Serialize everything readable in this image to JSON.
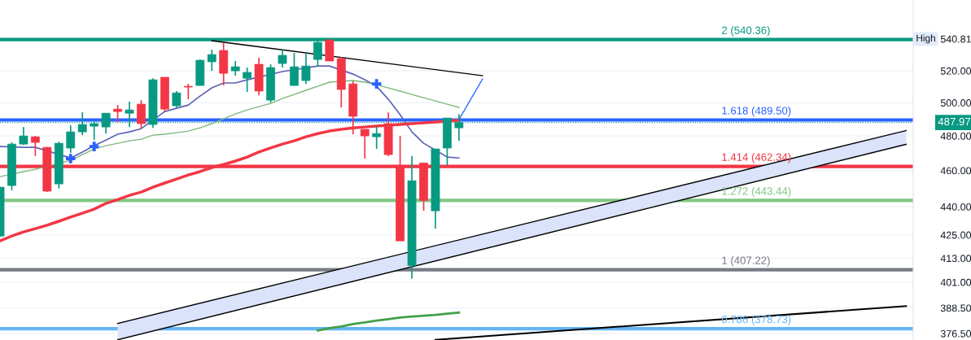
{
  "chart_data": {
    "type": "candlestick",
    "categories": [
      null,
      null,
      null,
      null,
      null,
      null,
      null,
      null,
      null,
      null,
      null,
      null,
      null,
      null,
      null,
      null,
      null,
      null,
      null,
      null,
      null,
      null,
      null,
      null,
      null,
      null,
      null,
      null,
      null,
      null,
      null,
      null,
      null,
      null,
      null,
      null,
      null,
      null,
      null,
      null,
      null,
      null,
      null,
      null,
      null,
      null,
      null,
      null,
      null,
      null,
      null,
      null,
      null,
      null,
      null,
      null,
      null,
      null,
      null,
      null,
      null,
      null,
      null,
      null,
      null,
      null,
      null,
      null,
      null,
      null,
      null,
      null,
      null,
      null,
      null,
      null,
      null,
      null
    ],
    "ohlc": [
      [
        424.4,
        450.7,
        424.0,
        450.7
      ],
      [
        451.6,
        476.2,
        448.9,
        475.2
      ],
      [
        475.2,
        485.3,
        474.8,
        480.0
      ],
      [
        479.5,
        480.0,
        468.2,
        476.2
      ],
      [
        473.3,
        473.5,
        448.0,
        448.5
      ],
      [
        452.5,
        476.6,
        450.0,
        475.7
      ],
      [
        472.9,
        486.3,
        470.1,
        482.4
      ],
      [
        482.4,
        494.1,
        480.5,
        486.8
      ],
      [
        485.8,
        488.7,
        477.6,
        487.3
      ],
      [
        485.3,
        493.6,
        481.4,
        493.6
      ],
      [
        496.1,
        498.6,
        488.3,
        494.6
      ],
      [
        493.6,
        500.6,
        485.3,
        495.6
      ],
      [
        499.1,
        501.6,
        484.3,
        487.3
      ],
      [
        486.8,
        515.3,
        484.8,
        514.3
      ],
      [
        515.9,
        515.9,
        494.6,
        496.1
      ],
      [
        498.1,
        507.2,
        497.1,
        506.1
      ],
      [
        510.2,
        511.7,
        502.1,
        509.7
      ],
      [
        510.7,
        527.3,
        510.7,
        526.8
      ],
      [
        525.8,
        533.7,
        520.0,
        530.5
      ],
      [
        533.2,
        538.5,
        510.7,
        518.4
      ],
      [
        520.0,
        526.3,
        516.9,
        522.6
      ],
      [
        515.3,
        522.1,
        506.7,
        519.0
      ],
      [
        524.2,
        528.4,
        504.6,
        507.2
      ],
      [
        501.6,
        524.2,
        500.1,
        522.1
      ],
      [
        524.7,
        533.7,
        522.1,
        530.0
      ],
      [
        510.7,
        531.6,
        510.7,
        522.6
      ],
      [
        513.8,
        531.6,
        511.7,
        523.1
      ],
      [
        527.3,
        539.6,
        522.6,
        538.5
      ],
      [
        540.1,
        540.81,
        526.3,
        526.3
      ],
      [
        527.9,
        528.9,
        497.1,
        508.2
      ],
      [
        511.7,
        513.3,
        480.9,
        491.7
      ],
      [
        483.9,
        484.0,
        466.8,
        480.0
      ],
      [
        479.5,
        485.8,
        472.4,
        481.4
      ],
      [
        487.3,
        494.1,
        468.2,
        469.1
      ],
      [
        463.0,
        480.0,
        421.9,
        421.9
      ],
      [
        409.3,
        468.2,
        402.8,
        454.3
      ],
      [
        464.3,
        464.3,
        437.8,
        443.4
      ],
      [
        437.8,
        472.4,
        428.3,
        472.4
      ],
      [
        472.9,
        490.7,
        463.0,
        490.7
      ],
      [
        484.8,
        493.1,
        477.1,
        487.97
      ],
      null,
      null,
      null,
      null,
      null,
      null,
      null,
      null,
      null,
      null,
      null,
      null,
      null,
      null,
      null,
      null,
      null,
      null,
      null,
      null,
      null,
      null,
      null,
      null,
      null,
      null,
      null,
      null,
      null,
      null,
      null,
      null,
      null,
      null,
      null,
      null,
      null,
      null
    ],
    "colors": [
      "#089981",
      "#089981",
      "#089981",
      "#f23645",
      "#f23645",
      "#089981",
      "#089981",
      "#089981",
      "#089981",
      "#089981",
      "#f23645",
      "#089981",
      "#f23645",
      "#089981",
      "#f23645",
      "#089981",
      "#f23645",
      "#089981",
      "#089981",
      "#f23645",
      "#089981",
      "#089981",
      "#f23645",
      "#089981",
      "#089981",
      "#089981",
      "#089981",
      "#089981",
      "#f23645",
      "#f23645",
      "#f23645",
      "#f23645",
      "#089981",
      "#f23645",
      "#f23645",
      "#089981",
      "#f23645",
      "#089981",
      "#089981",
      "#089981",
      null,
      null,
      null,
      null,
      null,
      null,
      null,
      null,
      null,
      null,
      null,
      null,
      null,
      null,
      null,
      null,
      null,
      null,
      null,
      null,
      null,
      null,
      null,
      null,
      null,
      null,
      null,
      null,
      null,
      null,
      null,
      null,
      null,
      null,
      null,
      null,
      null,
      null
    ],
    "series": [
      {
        "type": "line",
        "color": "#5d62b5",
        "values": [
          473.8,
          null,
          473.3,
          473.3,
          null,
          null,
          467.2,
          470.6,
          474.3,
          477.6,
          481.0,
          482.4,
          484.3,
          null,
          494.6,
          496.6,
          498.6,
          504.1,
          509.2,
          512.3,
          512.3,
          514.3,
          null,
          null,
          519.5,
          null,
          null,
          523.1,
          523.1,
          null,
          517.9,
          514.3,
          510.2,
          502.1,
          492.7,
          482.4,
          475.7,
          null,
          467.7,
          467.2,
          null,
          null,
          null,
          null,
          null,
          null,
          null,
          null,
          null,
          null,
          null,
          null,
          null,
          null,
          null,
          null,
          null,
          null,
          null,
          null,
          null,
          null,
          null,
          null,
          null,
          null,
          null,
          null,
          null,
          null,
          null,
          null,
          null,
          null,
          null,
          null,
          null,
          null
        ]
      },
      {
        "type": "line",
        "color": "#7cb87c",
        "values": [
          456.6,
          null,
          459.4,
          460.7,
          null,
          null,
          465.8,
          469.1,
          472.4,
          474.3,
          475.7,
          477.1,
          478.1,
          480.5,
          481.0,
          481.9,
          482.9,
          484.8,
          487.3,
          490.2,
          493.1,
          495.6,
          497.6,
          499.6,
          502.6,
          505.1,
          507.7,
          510.2,
          512.8,
          null,
          513.8,
          512.8,
          511.2,
          509.2,
          507.2,
          505.1,
          503.1,
          501.1,
          499.1,
          497.1,
          null,
          null,
          null,
          null,
          null,
          null,
          null,
          null,
          null,
          null,
          null,
          null,
          null,
          null,
          null,
          null,
          null,
          null,
          null,
          null,
          null,
          null,
          null,
          null,
          null,
          null,
          null,
          null,
          null,
          null,
          null,
          null,
          null,
          null,
          null,
          null,
          null,
          null
        ]
      },
      {
        "type": "line",
        "color": "#f23645",
        "values": [
          421.9,
          424.4,
          426.6,
          428.3,
          430.1,
          432.2,
          434.4,
          436.5,
          438.7,
          441.8,
          443.9,
          446.2,
          448.0,
          450.7,
          453.0,
          455.2,
          457.5,
          459.4,
          461.7,
          463.5,
          465.4,
          467.7,
          470.6,
          473.0,
          475.2,
          477.1,
          479.5,
          481.4,
          482.9,
          483.9,
          484.8,
          485.3,
          485.8,
          null,
          486.8,
          487.3,
          487.8,
          488.3,
          null,
          489.3,
          null,
          null,
          null,
          null,
          null,
          null,
          null,
          null,
          null,
          null,
          null,
          null,
          null,
          null,
          null,
          null,
          null,
          null,
          null,
          null,
          null,
          null,
          null,
          null,
          null,
          null,
          null,
          null,
          null,
          null,
          null,
          null,
          null,
          null,
          null,
          null,
          null,
          null
        ]
      },
      {
        "type": "line",
        "color": "#43a047",
        "values": [
          null,
          null,
          null,
          null,
          null,
          null,
          null,
          null,
          null,
          null,
          null,
          null,
          null,
          null,
          null,
          null,
          null,
          null,
          null,
          null,
          null,
          null,
          null,
          null,
          null,
          null,
          null,
          377.9,
          379.0,
          379.8,
          380.9,
          381.7,
          382.5,
          383.2,
          384.0,
          384.4,
          384.8,
          385.2,
          385.8,
          386.3,
          null,
          null,
          null,
          null,
          null,
          null,
          null,
          null,
          null,
          null,
          null,
          null,
          null,
          null,
          null,
          null,
          null,
          null,
          null,
          null,
          null,
          null,
          null,
          null,
          null,
          null,
          null,
          null,
          null,
          null,
          null,
          null,
          null,
          null,
          null,
          null,
          null,
          null
        ]
      },
      {
        "type": "line",
        "color": "#000000",
        "values": [
          null,
          null,
          null,
          null,
          null,
          null,
          null,
          null,
          null,
          null,
          381.2,
          null,
          null,
          null,
          null,
          null,
          null,
          null,
          null,
          null,
          null,
          null,
          null,
          null,
          null,
          null,
          null,
          null,
          null,
          null,
          null,
          null,
          null,
          null,
          null,
          null,
          null,
          null,
          null,
          null,
          null,
          null,
          null,
          null,
          null,
          null,
          null,
          null,
          null,
          null,
          null,
          null,
          null,
          null,
          null,
          null,
          null,
          null,
          null,
          null,
          null,
          null,
          null,
          null,
          null,
          null,
          null,
          null,
          null,
          null,
          null,
          null,
          null,
          null,
          null,
          null,
          null,
          483.2
        ],
        "lower": [
          null,
          null,
          null,
          null,
          null,
          null,
          null,
          null,
          null,
          null,
          373.6,
          null,
          null,
          null,
          null,
          null,
          null,
          null,
          null,
          null,
          null,
          null,
          null,
          null,
          null,
          null,
          null,
          null,
          null,
          null,
          null,
          null,
          null,
          null,
          null,
          null,
          null,
          null,
          null,
          null,
          null,
          null,
          null,
          null,
          null,
          null,
          null,
          null,
          null,
          null,
          null,
          null,
          null,
          null,
          null,
          null,
          null,
          null,
          null,
          null,
          null,
          null,
          null,
          null,
          null,
          null,
          null,
          null,
          null,
          null,
          null,
          null,
          null,
          null,
          null,
          null,
          null,
          475.1
        ],
        "upper": [
          null,
          null,
          null,
          null,
          null,
          null,
          null,
          null,
          null,
          null,
          381.2,
          null,
          null,
          null,
          null,
          null,
          null,
          null,
          null,
          null,
          null,
          null,
          null,
          null,
          null,
          null,
          null,
          null,
          null,
          null,
          null,
          null,
          null,
          null,
          null,
          null,
          null,
          null,
          null,
          null,
          null,
          null,
          null,
          null,
          null,
          null,
          null,
          null,
          null,
          null,
          null,
          null,
          null,
          null,
          null,
          null,
          null,
          null,
          null,
          null,
          null,
          null,
          null,
          null,
          null,
          null,
          null,
          null,
          null,
          null,
          null,
          null,
          null,
          null,
          null,
          null,
          null,
          483.2
        ]
      },
      {
        "type": "line",
        "color": "#000000",
        "values": [
          null,
          null,
          null,
          null,
          null,
          null,
          null,
          null,
          null,
          null,
          373.6,
          null,
          null,
          null,
          null,
          null,
          null,
          null,
          null,
          null,
          null,
          null,
          null,
          null,
          null,
          null,
          null,
          null,
          null,
          null,
          null,
          null,
          null,
          null,
          null,
          null,
          null,
          null,
          null,
          null,
          null,
          null,
          null,
          null,
          null,
          null,
          null,
          null,
          null,
          null,
          null,
          null,
          null,
          null,
          null,
          null,
          null,
          null,
          null,
          null,
          null,
          null,
          null,
          null,
          null,
          null,
          null,
          null,
          null,
          null,
          null,
          null,
          null,
          null,
          null,
          null,
          null,
          475.1
        ]
      },
      {
        "type": "line",
        "color": "#000000",
        "values": [
          null,
          null,
          null,
          null,
          null,
          null,
          null,
          null,
          null,
          null,
          null,
          null,
          null,
          null,
          null,
          null,
          null,
          null,
          539.6,
          null,
          null,
          null,
          null,
          null,
          null,
          null,
          null,
          null,
          null,
          null,
          null,
          null,
          null,
          null,
          null,
          null,
          null,
          null,
          null,
          null,
          null,
          516.9,
          null,
          null,
          null,
          null,
          null,
          null,
          null,
          null,
          null,
          null,
          null,
          null,
          null,
          null,
          null,
          null,
          null,
          null,
          null,
          null,
          null,
          null,
          null,
          null,
          null,
          null,
          null,
          null,
          null,
          null,
          null,
          null,
          null,
          null,
          null,
          null
        ]
      },
      {
        "type": "line",
        "color": "#000000",
        "values": [
          null,
          null,
          null,
          null,
          null,
          null,
          null,
          null,
          null,
          null,
          null,
          null,
          null,
          null,
          null,
          null,
          null,
          null,
          null,
          null,
          null,
          null,
          null,
          null,
          null,
          null,
          null,
          null,
          null,
          null,
          null,
          null,
          null,
          null,
          null,
          null,
          null,
          373.6,
          null,
          null,
          null,
          null,
          null,
          null,
          null,
          null,
          null,
          null,
          null,
          null,
          null,
          null,
          null,
          null,
          null,
          null,
          null,
          null,
          null,
          null,
          null,
          null,
          null,
          null,
          null,
          null,
          null,
          null,
          null,
          null,
          null,
          null,
          null,
          null,
          null,
          null,
          null,
          389.4
        ]
      },
      {
        "type": "line",
        "color": "#2962ff",
        "values": [
          null,
          null,
          null,
          null,
          null,
          null,
          null,
          null,
          null,
          null,
          null,
          null,
          null,
          null,
          null,
          null,
          null,
          null,
          null,
          null,
          null,
          null,
          null,
          null,
          null,
          null,
          null,
          null,
          null,
          null,
          null,
          null,
          null,
          null,
          null,
          null,
          null,
          null,
          null,
          489.7,
          null,
          514.8,
          null,
          null,
          null,
          null,
          null,
          null,
          null,
          null,
          null,
          null,
          null,
          null,
          null,
          null,
          null,
          null,
          null,
          null,
          null,
          null,
          null,
          null,
          null,
          null,
          null,
          null,
          null,
          null,
          null,
          null,
          null,
          null,
          null,
          null,
          null,
          null
        ]
      },
      {
        "type": "scatter",
        "color": "#2962ff",
        "marker": "cross",
        "values": [
          null,
          null,
          null,
          null,
          null,
          null,
          466.8,
          null,
          473.8,
          null,
          null,
          null,
          null,
          null,
          null,
          null,
          null,
          null,
          null,
          null,
          null,
          null,
          null,
          null,
          null,
          null,
          null,
          null,
          null,
          null,
          null,
          null,
          511.7,
          null,
          null,
          null,
          null,
          null,
          null,
          null,
          null,
          null,
          null,
          null,
          null,
          null,
          null,
          null,
          null,
          null,
          null,
          null,
          null,
          null,
          null,
          null,
          null,
          null,
          null,
          null,
          null,
          null,
          null,
          null,
          null,
          null,
          null,
          null,
          null,
          null,
          null,
          null,
          null,
          null,
          null,
          null,
          null,
          null
        ]
      }
    ],
    "ref_lines": [
      {
        "axis": "y",
        "value": 540.36,
        "label": "2 (540.36)",
        "color": "#089981",
        "line_style": "solid"
      },
      {
        "axis": "y",
        "value": 489.5,
        "label": "1.618 (489.50)",
        "color": "#2962ff",
        "line_style": "solid"
      },
      {
        "axis": "y",
        "value": 462.34,
        "label": "1.414 (462.34)",
        "color": "#f23645",
        "line_style": "solid"
      },
      {
        "axis": "y",
        "value": 443.44,
        "label": "1.272 (443.44)",
        "color": "#81c784",
        "line_style": "solid"
      },
      {
        "axis": "y",
        "value": 407.22,
        "label": "1 (407.22)",
        "color": "#787b86",
        "line_style": "solid"
      },
      {
        "axis": "y",
        "value": 378.73,
        "label": "0.786 (378.73)",
        "color": "#64b5f6",
        "line_style": "solid"
      },
      {
        "axis": "y",
        "value": 487.97,
        "label": "487.97",
        "color": "#089981",
        "line_style": "dotted"
      }
    ],
    "annotations": [
      "High"
    ],
    "log": true,
    "ylim": [
      373.5,
      567.3
    ],
    "yticks": [
      {
        "value": 376.5,
        "label": "376.50"
      },
      {
        "value": 388.5,
        "label": "388.50"
      },
      {
        "value": 401,
        "label": "401.00"
      },
      {
        "value": 413,
        "label": "413.00"
      },
      {
        "value": 425,
        "label": "425.00"
      },
      {
        "value": 440,
        "label": "440.00"
      },
      {
        "value": 460,
        "label": "460.00"
      },
      {
        "value": 480,
        "label": "480.00"
      },
      {
        "value": 500,
        "label": "500.00"
      },
      {
        "value": 520,
        "label": "520.00"
      },
      {
        "value": 540.81,
        "label": "540.81"
      }
    ],
    "tick_labels": "y",
    "grid": "y"
  }
}
